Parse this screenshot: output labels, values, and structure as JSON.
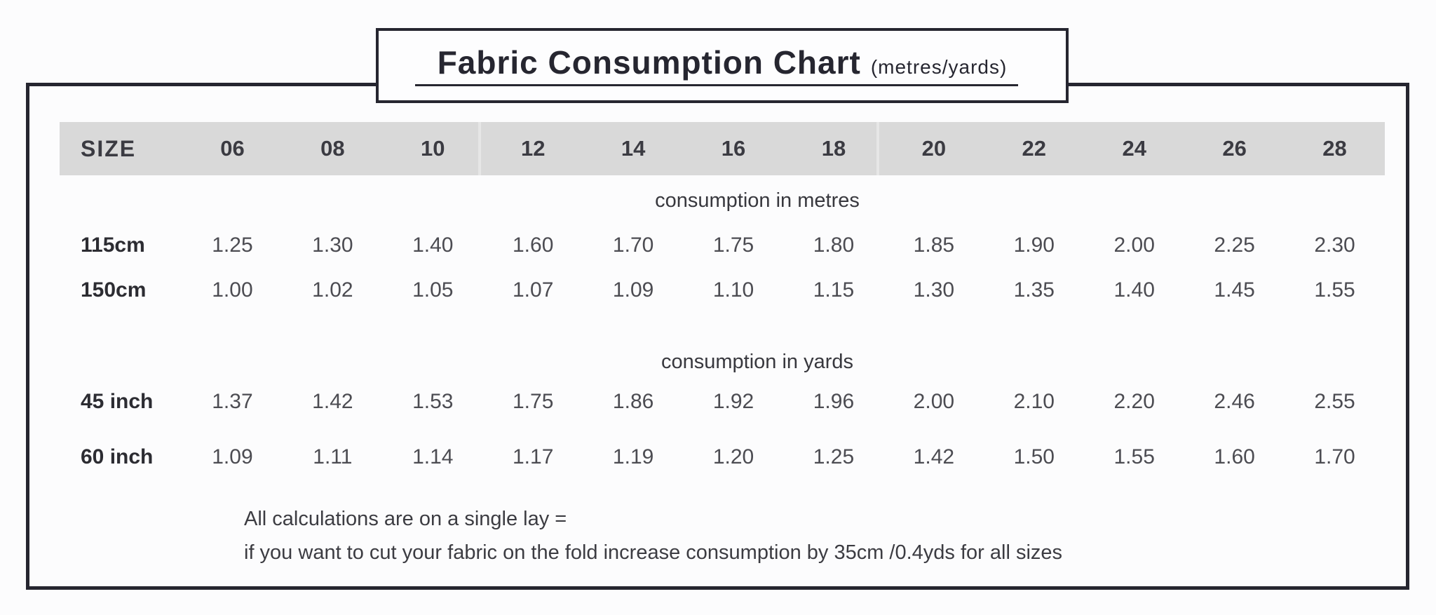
{
  "title": {
    "main": "Fabric Consumption Chart",
    "suffix": "(metres/yards)"
  },
  "chart_data": {
    "type": "table",
    "title": "Fabric Consumption Chart (metres/yards)",
    "size_header": "SIZE",
    "sizes": [
      "06",
      "08",
      "10",
      "12",
      "14",
      "16",
      "18",
      "20",
      "22",
      "24",
      "26",
      "28"
    ],
    "sections": [
      {
        "label": "consumption in metres",
        "rows": [
          {
            "label": "115cm",
            "values": [
              "1.25",
              "1.30",
              "1.40",
              "1.60",
              "1.70",
              "1.75",
              "1.80",
              "1.85",
              "1.90",
              "2.00",
              "2.25",
              "2.30"
            ]
          },
          {
            "label": "150cm",
            "values": [
              "1.00",
              "1.02",
              "1.05",
              "1.07",
              "1.09",
              "1.10",
              "1.15",
              "1.30",
              "1.35",
              "1.40",
              "1.45",
              "1.55"
            ]
          }
        ]
      },
      {
        "label": "consumption in yards",
        "rows": [
          {
            "label": "45 inch",
            "values": [
              "1.37",
              "1.42",
              "1.53",
              "1.75",
              "1.86",
              "1.92",
              "1.96",
              "2.00",
              "2.10",
              "2.20",
              "2.46",
              "2.55"
            ]
          },
          {
            "label": "60 inch",
            "values": [
              "1.09",
              "1.11",
              "1.14",
              "1.17",
              "1.19",
              "1.20",
              "1.25",
              "1.42",
              "1.50",
              "1.55",
              "1.60",
              "1.70"
            ]
          }
        ]
      }
    ],
    "footnote": [
      "All calculations are on a single lay =",
      "if you want to cut your fabric on the fold increase consumption by 35cm /0.4yds for all sizes"
    ]
  },
  "colors": {
    "border": "#262630",
    "header_bg": "#d9d9d9",
    "text_dark": "#2c2c32",
    "text_value": "#4c4c52",
    "background": "#fcfcfd"
  }
}
